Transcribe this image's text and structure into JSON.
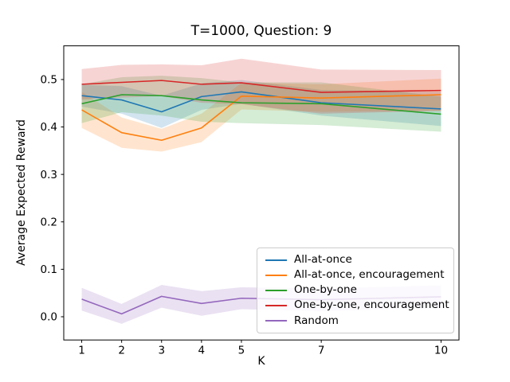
{
  "figure": {
    "title": "T=1000, Question: 9",
    "xlabel": "K",
    "ylabel": "Average Expected Reward"
  },
  "chart_data": {
    "type": "line",
    "title": "T=1000, Question: 9",
    "xlabel": "K",
    "ylabel": "Average Expected Reward",
    "grid": false,
    "legend_position": "lower right",
    "band_alpha": 0.2,
    "x": [
      1,
      2,
      3,
      4,
      5,
      7,
      10
    ],
    "xlim": [
      0.55,
      10.45
    ],
    "ylim": [
      -0.049,
      0.571
    ],
    "xticks": {
      "values": [
        1,
        2,
        3,
        4,
        5,
        7,
        10
      ],
      "labels": [
        "1",
        "2",
        "3",
        "4",
        "5",
        "7",
        "10"
      ]
    },
    "yticks": {
      "values": [
        0.0,
        0.1,
        0.2,
        0.3,
        0.4,
        0.5
      ],
      "labels": [
        "0.0",
        "0.1",
        "0.2",
        "0.3",
        "0.4",
        "0.5"
      ]
    },
    "series": [
      {
        "name": "All-at-once",
        "color": "#1f77b4",
        "values": [
          0.466,
          0.457,
          0.432,
          0.464,
          0.474,
          0.451,
          0.438
        ],
        "band_lower": [
          0.443,
          0.428,
          0.398,
          0.436,
          0.449,
          0.424,
          0.402
        ],
        "band_upper": [
          0.489,
          0.486,
          0.466,
          0.492,
          0.499,
          0.478,
          0.474
        ]
      },
      {
        "name": "All-at-once, encouragement",
        "color": "#ff7f0e",
        "values": [
          0.436,
          0.388,
          0.372,
          0.398,
          0.465,
          0.461,
          0.468
        ],
        "band_lower": [
          0.398,
          0.356,
          0.348,
          0.368,
          0.437,
          0.432,
          0.434
        ],
        "band_upper": [
          0.474,
          0.42,
          0.396,
          0.428,
          0.493,
          0.49,
          0.502
        ]
      },
      {
        "name": "One-by-one",
        "color": "#2ca02c",
        "values": [
          0.449,
          0.468,
          0.466,
          0.457,
          0.451,
          0.449,
          0.427
        ],
        "band_lower": [
          0.408,
          0.431,
          0.424,
          0.411,
          0.408,
          0.404,
          0.39
        ],
        "band_upper": [
          0.49,
          0.505,
          0.508,
          0.503,
          0.494,
          0.494,
          0.464
        ]
      },
      {
        "name": "One-by-one, encouragement",
        "color": "#d62728",
        "values": [
          0.49,
          0.494,
          0.498,
          0.49,
          0.493,
          0.473,
          0.477
        ],
        "band_lower": [
          0.458,
          0.462,
          0.465,
          0.451,
          0.448,
          0.428,
          0.434
        ],
        "band_upper": [
          0.522,
          0.531,
          0.532,
          0.53,
          0.544,
          0.521,
          0.52
        ]
      },
      {
        "name": "Random",
        "color": "#9467bd",
        "values": [
          0.037,
          0.006,
          0.043,
          0.028,
          0.039,
          0.036,
          0.042
        ],
        "band_lower": [
          0.013,
          -0.015,
          0.019,
          0.002,
          0.016,
          0.012,
          0.018
        ],
        "band_upper": [
          0.061,
          0.027,
          0.067,
          0.054,
          0.062,
          0.06,
          0.066
        ]
      }
    ]
  }
}
